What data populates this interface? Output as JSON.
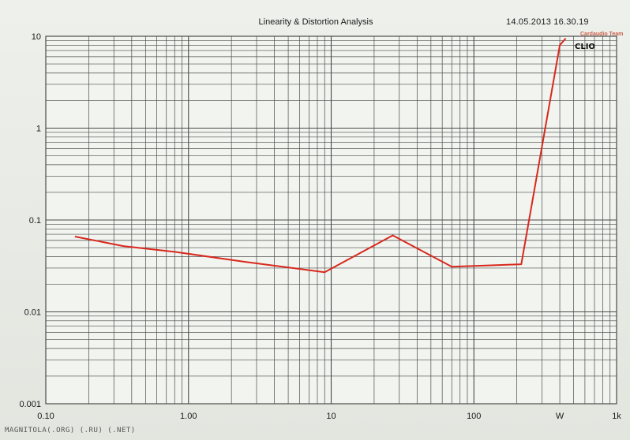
{
  "header": {
    "title": "Linearity & Distortion Analysis",
    "timestamp": "14.05.2013 16.30.19",
    "logo": "CLIO",
    "brand": "Cardaudio Team"
  },
  "footer": {
    "watermark": "MAGNITOLA(.ORG) (.RU) (.NET)"
  },
  "chart_data": {
    "type": "line",
    "title": "Linearity & Distortion Analysis",
    "xlabel": "",
    "ylabel": "",
    "x_scale": "log",
    "y_scale": "log",
    "xlim": [
      0.1,
      1000
    ],
    "ylim": [
      0.001,
      10
    ],
    "x_tick_labels": [
      {
        "value": 0.1,
        "label": "0.10"
      },
      {
        "value": 1,
        "label": "1.00"
      },
      {
        "value": 10,
        "label": "10"
      },
      {
        "value": 100,
        "label": "100"
      },
      {
        "value": 400,
        "label": "W"
      },
      {
        "value": 1000,
        "label": "1k"
      }
    ],
    "y_tick_labels": [
      {
        "value": 10,
        "label": "10"
      },
      {
        "value": 1,
        "label": "1"
      },
      {
        "value": 0.1,
        "label": "0.1"
      },
      {
        "value": 0.01,
        "label": "0.01"
      },
      {
        "value": 0.001,
        "label": "0.001"
      }
    ],
    "grid": true,
    "series": [
      {
        "color": "#d8291c",
        "x": [
          0.16,
          0.35,
          0.8,
          2.5,
          9,
          27,
          70,
          215,
          400,
          440
        ],
        "y": [
          0.066,
          0.052,
          0.045,
          0.035,
          0.027,
          0.068,
          0.031,
          0.033,
          8.0,
          9.5
        ]
      }
    ]
  }
}
